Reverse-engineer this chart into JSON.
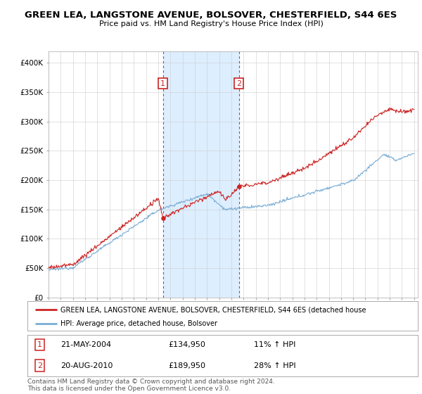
{
  "title": "GREEN LEA, LANGSTONE AVENUE, BOLSOVER, CHESTERFIELD, S44 6ES",
  "subtitle": "Price paid vs. HM Land Registry's House Price Index (HPI)",
  "hpi_color": "#7aadd4",
  "price_color": "#cc2222",
  "vline_color": "#cc3333",
  "shade_color": "#ddeeff",
  "transaction1": {
    "label": "1",
    "date": "21-MAY-2004",
    "year": 2004.38,
    "price": 134950,
    "pct": "11%",
    "dir": "↑"
  },
  "transaction2": {
    "label": "2",
    "date": "20-AUG-2010",
    "year": 2010.63,
    "price": 189950,
    "pct": "28%",
    "dir": "↑"
  },
  "legend_red_label": "GREEN LEA, LANGSTONE AVENUE, BOLSOVER, CHESTERFIELD, S44 6ES (detached house",
  "legend_blue_label": "HPI: Average price, detached house, Bolsover",
  "footer": "Contains HM Land Registry data © Crown copyright and database right 2024.\nThis data is licensed under the Open Government Licence v3.0.",
  "bg_color": "#ffffff",
  "grid_color": "#cccccc",
  "y_ticks": [
    0,
    50000,
    100000,
    150000,
    200000,
    250000,
    300000,
    350000,
    400000
  ],
  "y_tick_labels": [
    "£0",
    "£50K",
    "£100K",
    "£150K",
    "£200K",
    "£250K",
    "£300K",
    "£350K",
    "£400K"
  ]
}
